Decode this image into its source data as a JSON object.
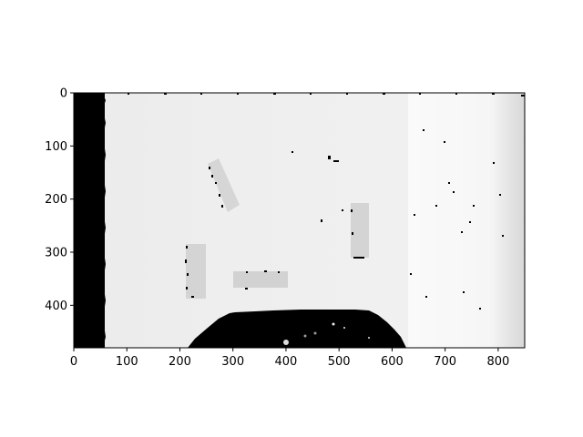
{
  "image": {
    "type": "depth-map",
    "colormap": "grayscale",
    "x_range": [
      0,
      850
    ],
    "y_range": [
      0,
      480
    ],
    "x_ticks": [
      0,
      100,
      200,
      300,
      400,
      500,
      600,
      700,
      800
    ],
    "y_ticks": [
      0,
      100,
      200,
      300,
      400
    ],
    "x_tick_labels": [
      "0",
      "100",
      "200",
      "300",
      "400",
      "500",
      "600",
      "700",
      "800"
    ],
    "y_tick_labels": [
      "0",
      "100",
      "200",
      "300",
      "400"
    ]
  },
  "colors": {
    "background": "#efefef",
    "right_panel": "#f8f8f8",
    "left_band": "#000000",
    "objects": "#d8d8d8",
    "bottom_blob": "#000000"
  }
}
